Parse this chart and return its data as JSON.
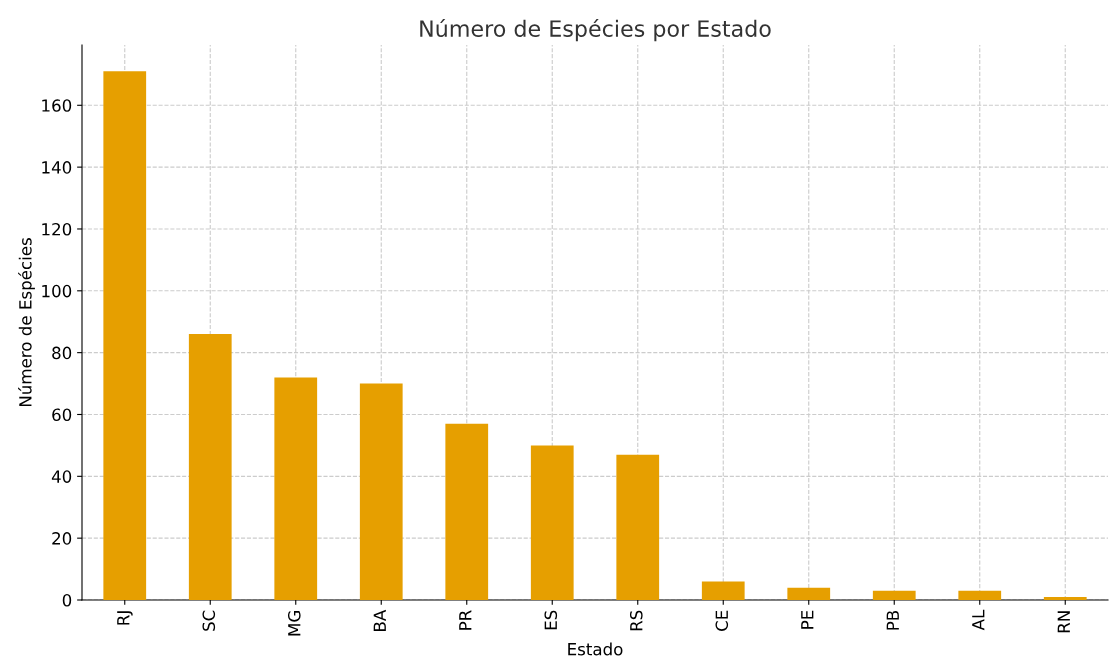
{
  "chart_data": {
    "type": "bar",
    "title": "Número de Espécies por Estado",
    "xlabel": "Estado",
    "ylabel": "Número de Espécies",
    "categories": [
      "RJ",
      "SC",
      "MG",
      "BA",
      "PR",
      "ES",
      "RS",
      "CE",
      "PE",
      "PB",
      "AL",
      "RN"
    ],
    "values": [
      171,
      86,
      72,
      70,
      57,
      50,
      47,
      6,
      4,
      3,
      3,
      1
    ],
    "color": "#e69f00",
    "ylim": [
      0,
      179.5
    ],
    "yticks": [
      0,
      20,
      40,
      60,
      80,
      100,
      120,
      140,
      160
    ],
    "grid": true
  }
}
